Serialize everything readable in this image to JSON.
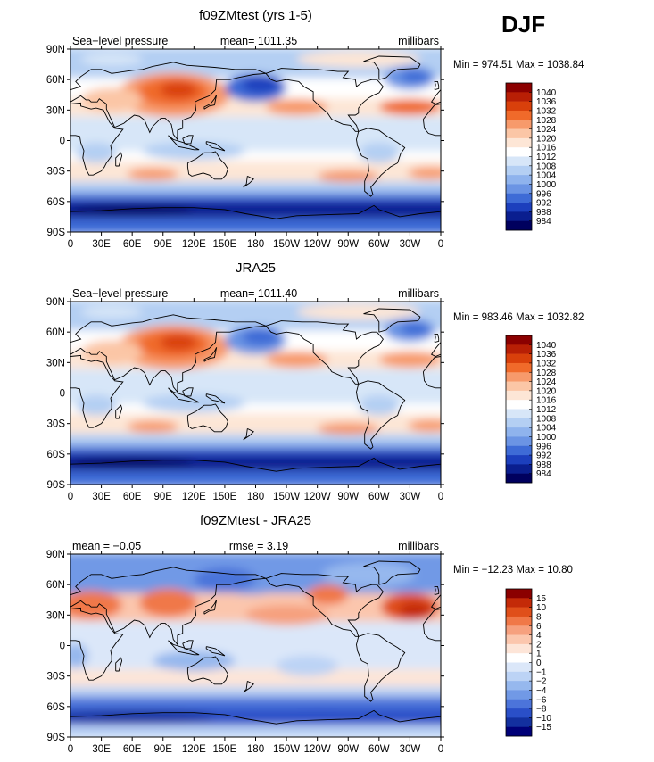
{
  "season": "DJF",
  "panels": [
    {
      "title": "f09ZMtest (yrs 1-5)",
      "left_label": "Sea−level pressure",
      "center_label": "mean= 1011.35",
      "right_label": "millibars",
      "minmax": "Min = 974.51 Max = 1038.84",
      "colorbar_labels": [
        "1040",
        "1036",
        "1032",
        "1028",
        "1024",
        "1020",
        "1016",
        "1012",
        "1008",
        "1004",
        "1000",
        "996",
        "992",
        "988",
        "984"
      ],
      "field_values": {
        "min": 974.51,
        "max": 1038.84,
        "mean": 1011.35
      }
    },
    {
      "title": "JRA25",
      "left_label": "Sea−level pressure",
      "center_label": "mean= 1011.40",
      "right_label": "millibars",
      "minmax": "Min = 983.46 Max = 1032.82",
      "colorbar_labels": [
        "1040",
        "1036",
        "1032",
        "1028",
        "1024",
        "1020",
        "1016",
        "1012",
        "1008",
        "1004",
        "1000",
        "996",
        "992",
        "988",
        "984"
      ],
      "field_values": {
        "min": 983.46,
        "max": 1032.82,
        "mean": 1011.4
      }
    },
    {
      "title": "f09ZMtest - JRA25",
      "left_label": "mean =   −0.05",
      "center_label": "rmse =    3.19",
      "right_label": "millibars",
      "minmax": "Min = −12.23 Max =   10.80",
      "colorbar_labels": [
        "15",
        "10",
        "8",
        "6",
        "4",
        "2",
        "1",
        "0",
        "−1",
        "−2",
        "−4",
        "−6",
        "−8",
        "−10",
        "−15"
      ],
      "field_values": {
        "min": -12.23,
        "max": 10.8,
        "mean": -0.05,
        "rmse": 3.19
      }
    }
  ],
  "axes": {
    "lat_labels": [
      "90N",
      "60N",
      "30N",
      "0",
      "30S",
      "60S",
      "90S"
    ],
    "lon_labels": [
      "0",
      "30E",
      "60E",
      "90E",
      "120E",
      "150E",
      "180",
      "150W",
      "120W",
      "90W",
      "60W",
      "30W",
      "0"
    ]
  },
  "palette": {
    "abs": [
      "#8b0000",
      "#b81f05",
      "#d9400b",
      "#f06a2a",
      "#f79a6b",
      "#fbc6a6",
      "#fde6d6",
      "#ffffff",
      "#d7e6f8",
      "#b4cff3",
      "#8fb3ed",
      "#6b94e4",
      "#3e6bd6",
      "#1c3fbd",
      "#0a1e8f",
      "#00005e"
    ],
    "diff": [
      "#8b0000",
      "#c42a08",
      "#e04f1a",
      "#f07848",
      "#f6a07e",
      "#fbc6ad",
      "#fde5d8",
      "#ffffff",
      "#dbe7f9",
      "#bcd3f5",
      "#96b8ee",
      "#7199e6",
      "#4c74da",
      "#2a4fc8",
      "#13309f",
      "#000078"
    ]
  }
}
